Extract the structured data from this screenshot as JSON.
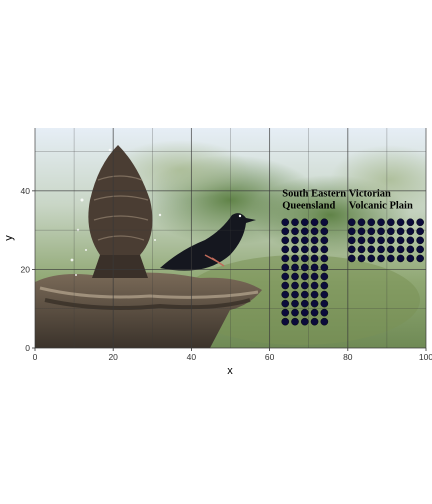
{
  "chart_data": {
    "type": "scatter",
    "title": "",
    "xlabel": "x",
    "ylabel": "y",
    "xlim": [
      0,
      100
    ],
    "ylim": [
      0,
      56
    ],
    "x_ticks": [
      "0",
      "20",
      "40",
      "60",
      "80",
      "100"
    ],
    "y_ticks": [
      "0",
      "20",
      "40"
    ],
    "grid": true,
    "background": "photograph of a starling perched on a stone fountain",
    "point_color": "#0b0b3b",
    "groups": [
      {
        "label": "South Eastern Queensland",
        "label_lines": [
          "South Eastern",
          "Queensland"
        ],
        "columns": 5,
        "rows": 12,
        "count": 60,
        "x_values": [
          64,
          66.5,
          69,
          71.5,
          74
        ],
        "y_top": 32,
        "y_step": 2.3
      },
      {
        "label": "Victorian Volcanic Plain",
        "label_lines": [
          "Victorian",
          "Volcanic Plain"
        ],
        "columns": 8,
        "rows": 5,
        "count": 40,
        "x_values": [
          81,
          83.5,
          86,
          88.5,
          91,
          93.5,
          96,
          98.5
        ],
        "y_top": 32,
        "y_step": 2.3
      }
    ]
  }
}
